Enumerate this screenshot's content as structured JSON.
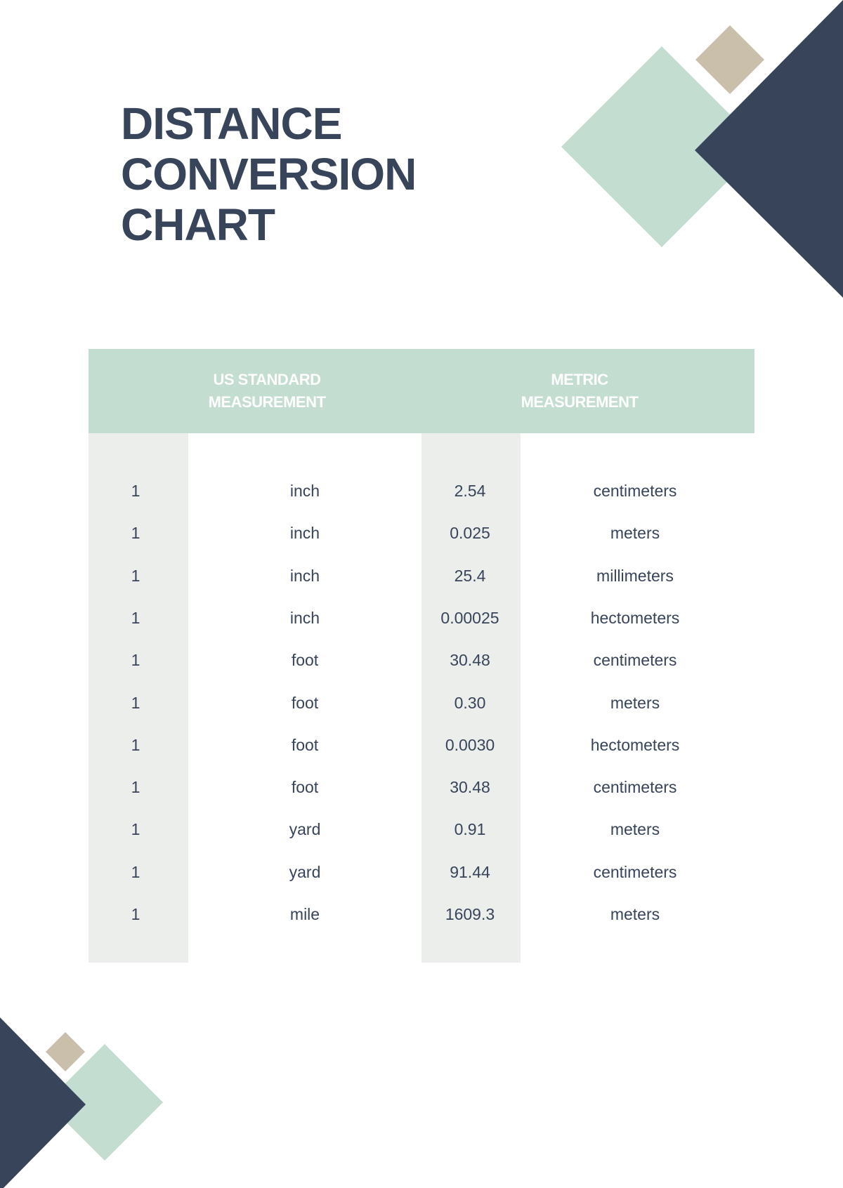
{
  "title": {
    "lines": [
      "DISTANCE",
      "CONVERSION",
      "CHART"
    ]
  },
  "colors": {
    "navy": "#37445a",
    "mint": "#c3ddd1",
    "tan": "#c9bfab",
    "stripe": "#eceeeb"
  },
  "table": {
    "headers": [
      {
        "line1": "US STANDARD",
        "line2": "MEASUREMENT"
      },
      {
        "line1": "METRIC",
        "line2": "MEASUREMENT"
      }
    ],
    "rows": [
      [
        "1",
        "inch",
        "2.54",
        "centimeters"
      ],
      [
        "1",
        "inch",
        "0.025",
        "meters"
      ],
      [
        "1",
        "inch",
        "25.4",
        "millimeters"
      ],
      [
        "1",
        "inch",
        "0.00025",
        "hectometers"
      ],
      [
        "1",
        "foot",
        "30.48",
        "centimeters"
      ],
      [
        "1",
        "foot",
        "0.30",
        "meters"
      ],
      [
        "1",
        "foot",
        "0.0030",
        "hectometers"
      ],
      [
        "1",
        "foot",
        "30.48",
        "centimeters"
      ],
      [
        "1",
        "yard",
        "0.91",
        "meters"
      ],
      [
        "1",
        "yard",
        "91.44",
        "centimeters"
      ],
      [
        "1",
        "mile",
        "1609.3",
        "meters"
      ]
    ]
  }
}
